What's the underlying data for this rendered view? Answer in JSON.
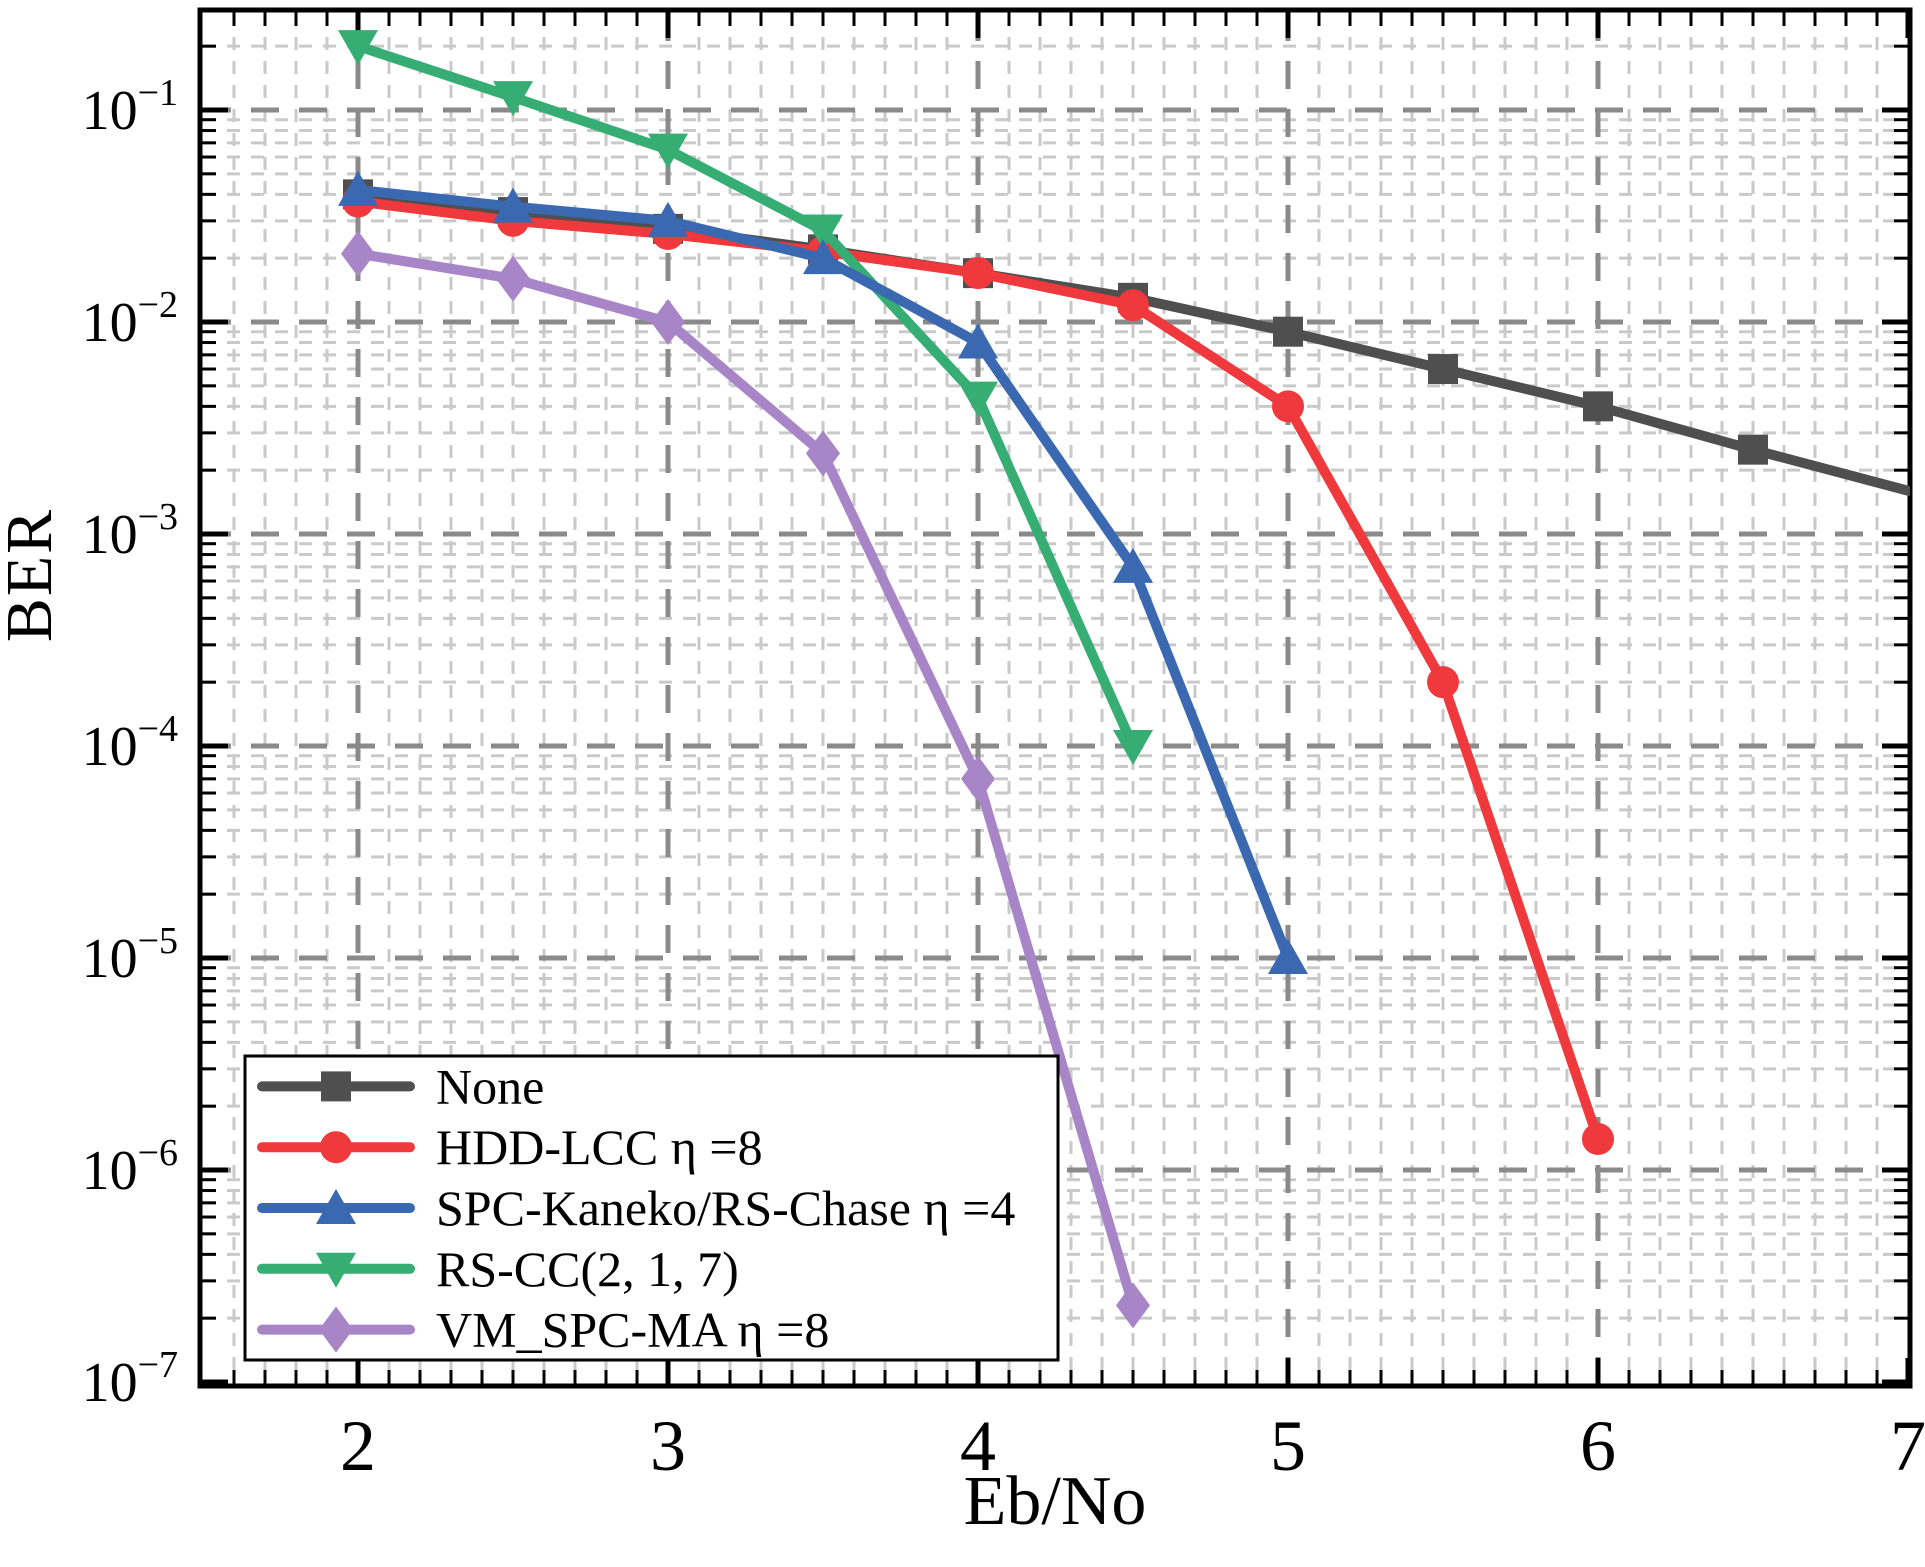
{
  "axes": {
    "x": {
      "title": "Eb/No",
      "tick_labels": [
        "2",
        "3",
        "4",
        "5",
        "6",
        "7"
      ],
      "tick_values": [
        2,
        3,
        4,
        5,
        6,
        7
      ],
      "minor_step": 0.1,
      "range": [
        1.49,
        7.01
      ]
    },
    "y": {
      "title": "BER",
      "scale": "log",
      "major_exponents": [
        -1,
        -2,
        -3,
        -4,
        -5,
        -6,
        -7
      ],
      "range": [
        1e-07,
        0.3
      ]
    }
  },
  "chart_data": {
    "type": "line",
    "title": "",
    "xlabel": "Eb/No",
    "ylabel": "BER",
    "xlim": [
      1.5,
      7
    ],
    "ylim": [
      1e-07,
      0.3
    ],
    "grid": {
      "major": true,
      "minor": true,
      "major_color": "#8A8A8A",
      "minor_color": "#C9C9C9"
    },
    "legend_position": "bottom-left",
    "frame_color": "#000000",
    "series": [
      {
        "id": "none",
        "name": "None",
        "marker": "square",
        "color": "#4F4F4F",
        "x": [
          2,
          2.5,
          3,
          3.5,
          4,
          4.5,
          5,
          5.5,
          6,
          6.5,
          7
        ],
        "values": [
          0.04,
          0.033,
          0.0275,
          0.022,
          0.017,
          0.013,
          0.009,
          0.006,
          0.004,
          0.0025,
          0.0016
        ]
      },
      {
        "id": "hdd-lcc",
        "name": "HDD-LCC  η =8",
        "marker": "circle",
        "color": "#EF393C",
        "x": [
          2,
          2.5,
          3,
          3.5,
          4,
          4.5,
          5,
          5.5,
          6
        ],
        "values": [
          0.037,
          0.03,
          0.026,
          0.0215,
          0.017,
          0.012,
          0.004,
          0.0002,
          1.4e-06
        ]
      },
      {
        "id": "spc-kaneko-rs-chase",
        "name": "SPC-Kaneko/RS-Chase  η =4",
        "marker": "triangle-up",
        "color": "#3A68B1",
        "x": [
          2,
          2.5,
          3,
          3.5,
          4,
          4.5,
          5
        ],
        "values": [
          0.042,
          0.035,
          0.03,
          0.02,
          0.008,
          0.0007,
          1e-05
        ]
      },
      {
        "id": "rs-cc",
        "name": "RS-CC(2, 1, 7)",
        "marker": "triangle-down",
        "color": "#36AD73",
        "x": [
          2,
          2.5,
          3,
          3.5,
          4,
          4.5
        ],
        "values": [
          0.2,
          0.115,
          0.065,
          0.027,
          0.0044,
          0.0001
        ]
      },
      {
        "id": "vm-spc-ma",
        "name": "VM_SPC-MA  η =8",
        "marker": "diamond",
        "color": "#A885C7",
        "x": [
          2,
          2.5,
          3,
          3.5,
          4,
          4.5
        ],
        "values": [
          0.021,
          0.016,
          0.01,
          0.0024,
          7e-05,
          2.3e-07
        ]
      }
    ]
  }
}
